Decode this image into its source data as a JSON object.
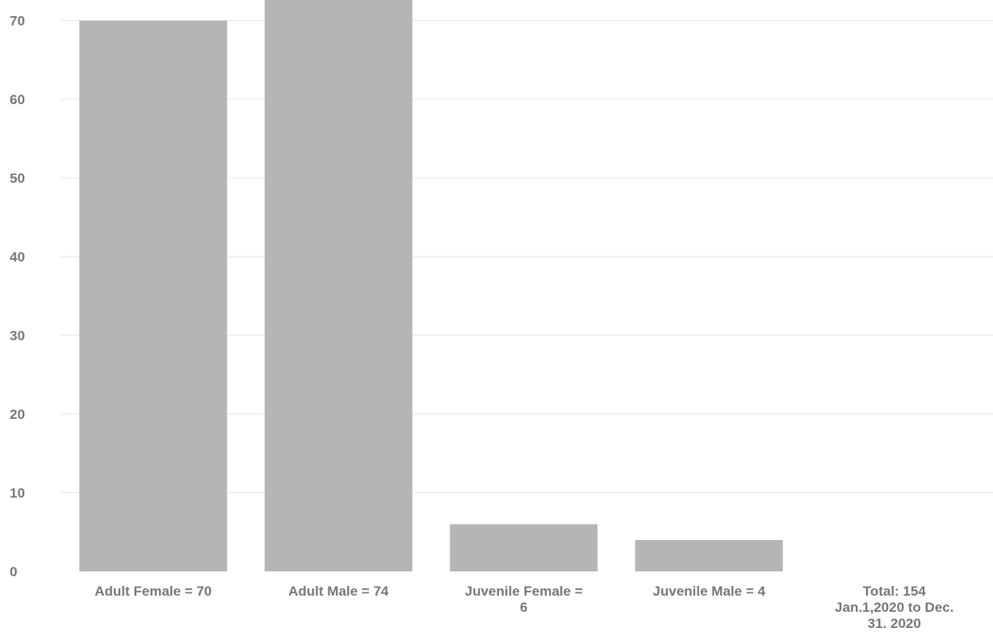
{
  "chart_data": {
    "type": "bar",
    "categories": [
      "Adult Female = 70",
      "Adult Male = 74",
      "Juvenile Female = 6",
      "Juvenile Male = 4",
      "Total: 154 Jan.1,2020 to Dec. 31. 2020"
    ],
    "category_lines": [
      [
        "Adult Female = 70"
      ],
      [
        "Adult Male = 74"
      ],
      [
        "Juvenile Female =",
        "6"
      ],
      [
        "Juvenile Male = 4"
      ],
      [
        "Total: 154",
        "Jan.1,2020 to Dec.",
        "31. 2020"
      ]
    ],
    "values": [
      70,
      74,
      6,
      4,
      null
    ],
    "yticks": [
      0,
      10,
      20,
      30,
      40,
      50,
      60,
      70
    ],
    "ylim": [
      0,
      72.8
    ],
    "grid": true,
    "colors": {
      "bar": "#b5b5b5",
      "grid": "#ebebeb",
      "text": "#777777"
    }
  }
}
